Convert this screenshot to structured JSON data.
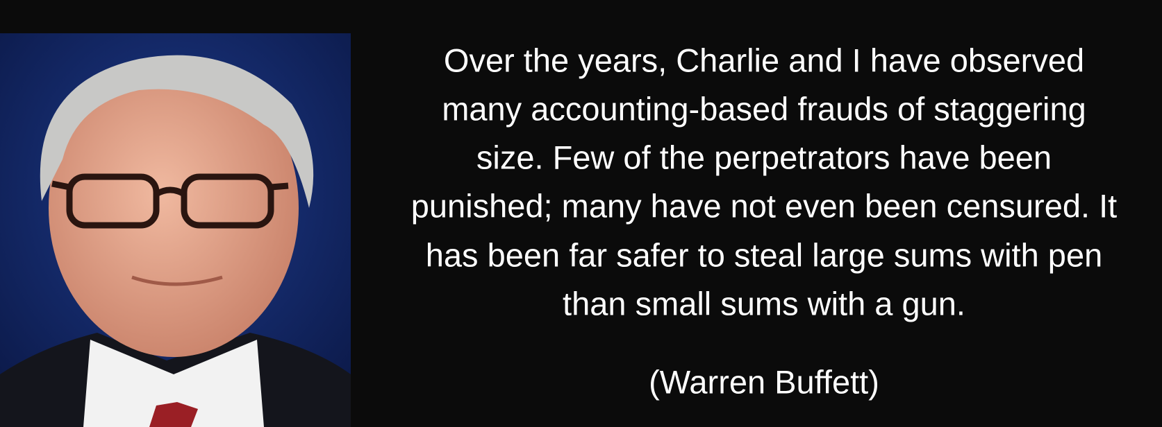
{
  "quote": {
    "lines": [
      "Over the years, Charlie and I have observed",
      "many accounting-based frauds of staggering",
      "size. Few of the perpetrators have been",
      "punished; many have not even been censured. It",
      "has been far safer to steal large sums with pen",
      "than small sums with a gun."
    ],
    "attribution": "(Warren Buffett)"
  }
}
